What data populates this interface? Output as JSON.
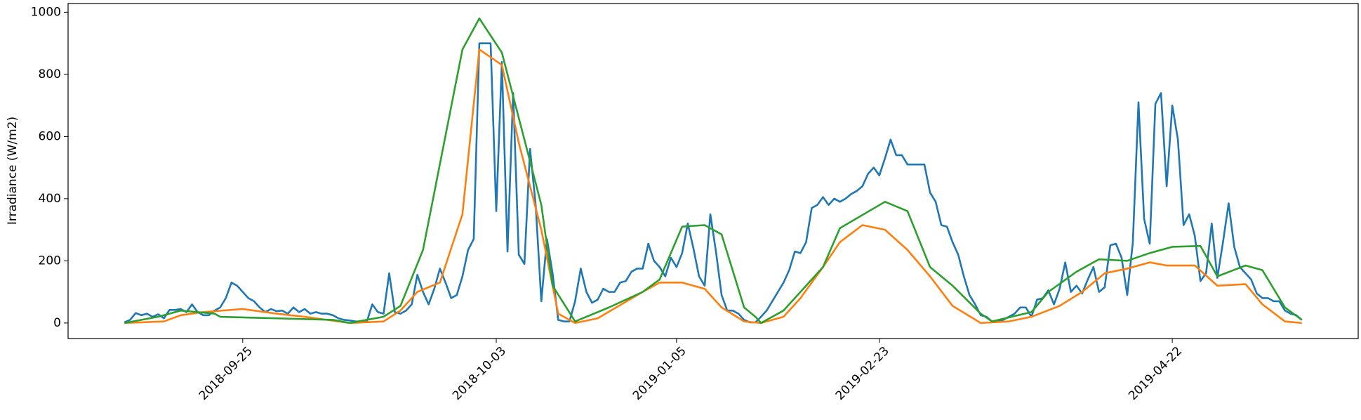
{
  "chart_data": {
    "type": "line",
    "ylabel": "Irradiance (W/m2)",
    "xlim": [
      -10,
      219
    ],
    "xticks": [
      {
        "value": 21,
        "label": "2018-09-25"
      },
      {
        "value": 66,
        "label": "2018-10-03"
      },
      {
        "value": 98,
        "label": "2019-01-05"
      },
      {
        "value": 134,
        "label": "2019-02-23"
      },
      {
        "value": 186,
        "label": "2019-04-22"
      }
    ],
    "ylim": [
      -50,
      1028
    ],
    "yticks": [
      0,
      200,
      400,
      600,
      800,
      1000
    ],
    "grid": false,
    "series": [
      {
        "color": "#1f77b4",
        "values": [
          2,
          10,
          32,
          25,
          30,
          20,
          28,
          15,
          42,
          42,
          45,
          35,
          60,
          35,
          25,
          25,
          40,
          50,
          80,
          130,
          120,
          100,
          80,
          70,
          50,
          35,
          45,
          38,
          40,
          30,
          50,
          35,
          45,
          30,
          35,
          30,
          30,
          25,
          15,
          10,
          8,
          5,
          5,
          3,
          60,
          35,
          30,
          160,
          35,
          30,
          40,
          60,
          155,
          100,
          60,
          110,
          175,
          130,
          80,
          90,
          150,
          235,
          270,
          900,
          900,
          900,
          360,
          840,
          230,
          740,
          220,
          190,
          560,
          380,
          70,
          270,
          160,
          10,
          5,
          5,
          70,
          175,
          100,
          65,
          75,
          110,
          100,
          100,
          130,
          135,
          165,
          175,
          175,
          255,
          200,
          180,
          150,
          210,
          180,
          225,
          320,
          240,
          150,
          120,
          350,
          230,
          90,
          40,
          40,
          30,
          10,
          2,
          2,
          20,
          40,
          70,
          100,
          130,
          170,
          230,
          225,
          260,
          370,
          380,
          405,
          380,
          400,
          390,
          400,
          415,
          425,
          440,
          480,
          500,
          475,
          530,
          590,
          540,
          540,
          510,
          510,
          510,
          510,
          420,
          390,
          315,
          310,
          260,
          220,
          150,
          90,
          60,
          25,
          20,
          5,
          5,
          10,
          20,
          30,
          50,
          50,
          20,
          75,
          80,
          105,
          60,
          110,
          195,
          100,
          120,
          95,
          140,
          180,
          100,
          115,
          250,
          255,
          210,
          90,
          260,
          710,
          335,
          255,
          705,
          740,
          440,
          700,
          590,
          315,
          350,
          280,
          135,
          160,
          320,
          145,
          260,
          385,
          245,
          180,
          160,
          140,
          95,
          80,
          80,
          70,
          70,
          40,
          30,
          25,
          10
        ]
      },
      {
        "color": "#ff7f0e",
        "x": [
          0,
          7,
          10,
          14,
          21,
          27,
          32,
          40,
          46,
          49,
          52,
          56,
          60,
          63,
          67,
          70,
          74,
          77,
          80,
          84,
          92,
          95,
          99,
          103,
          106,
          110,
          113,
          117,
          120,
          124,
          127,
          131,
          135,
          139,
          143,
          147,
          152,
          157,
          161,
          166,
          170,
          174,
          178,
          182,
          185,
          190,
          194,
          199,
          202,
          206,
          209
        ],
        "values": [
          0,
          5,
          25,
          35,
          45,
          30,
          20,
          0,
          5,
          40,
          100,
          130,
          350,
          880,
          830,
          580,
          300,
          30,
          0,
          15,
          100,
          130,
          130,
          110,
          50,
          5,
          0,
          20,
          80,
          180,
          260,
          315,
          300,
          235,
          150,
          55,
          0,
          5,
          20,
          55,
          100,
          160,
          175,
          195,
          185,
          185,
          120,
          125,
          60,
          5,
          0
        ]
      },
      {
        "color": "#2ca02c",
        "x": [
          0,
          6,
          10,
          16,
          17,
          37,
          40,
          46,
          49,
          53,
          60,
          63,
          67,
          70,
          74,
          76,
          80,
          86,
          92,
          95,
          99,
          103,
          106,
          110,
          112,
          113,
          117,
          124,
          127,
          135,
          139,
          143,
          147,
          152,
          154,
          161,
          164,
          169,
          173,
          178,
          182,
          186,
          191,
          194,
          199,
          202,
          206,
          209
        ],
        "values": [
          0,
          20,
          40,
          30,
          20,
          10,
          0,
          20,
          55,
          235,
          880,
          980,
          870,
          660,
          380,
          120,
          5,
          50,
          100,
          140,
          310,
          315,
          285,
          50,
          20,
          0,
          40,
          180,
          305,
          390,
          360,
          180,
          120,
          30,
          5,
          35,
          100,
          165,
          205,
          200,
          225,
          245,
          248,
          150,
          185,
          170,
          50,
          10
        ]
      }
    ]
  }
}
